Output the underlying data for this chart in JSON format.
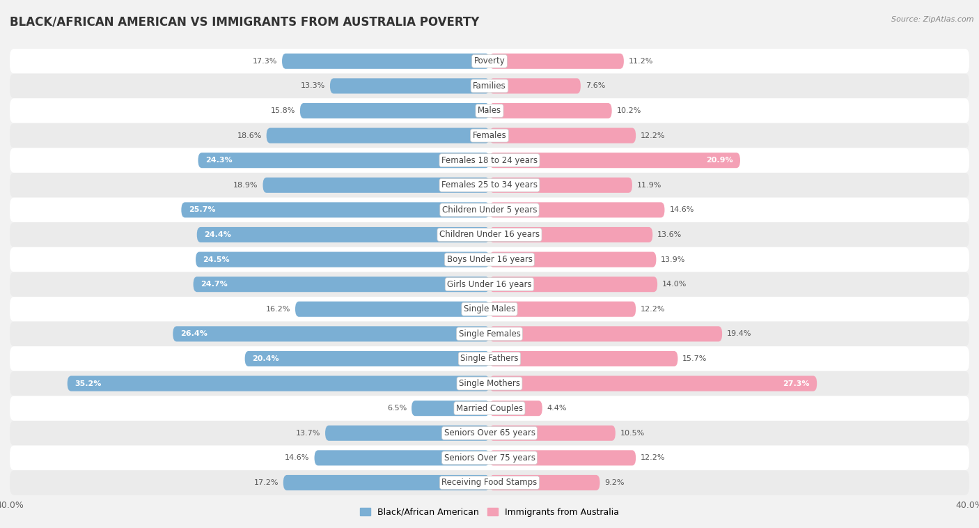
{
  "title": "BLACK/AFRICAN AMERICAN VS IMMIGRANTS FROM AUSTRALIA POVERTY",
  "source": "Source: ZipAtlas.com",
  "categories": [
    "Poverty",
    "Families",
    "Males",
    "Females",
    "Females 18 to 24 years",
    "Females 25 to 34 years",
    "Children Under 5 years",
    "Children Under 16 years",
    "Boys Under 16 years",
    "Girls Under 16 years",
    "Single Males",
    "Single Females",
    "Single Fathers",
    "Single Mothers",
    "Married Couples",
    "Seniors Over 65 years",
    "Seniors Over 75 years",
    "Receiving Food Stamps"
  ],
  "left_values": [
    17.3,
    13.3,
    15.8,
    18.6,
    24.3,
    18.9,
    25.7,
    24.4,
    24.5,
    24.7,
    16.2,
    26.4,
    20.4,
    35.2,
    6.5,
    13.7,
    14.6,
    17.2
  ],
  "right_values": [
    11.2,
    7.6,
    10.2,
    12.2,
    20.9,
    11.9,
    14.6,
    13.6,
    13.9,
    14.0,
    12.2,
    19.4,
    15.7,
    27.3,
    4.4,
    10.5,
    12.2,
    9.2
  ],
  "left_color": "#7bafd4",
  "right_color": "#f4a0b5",
  "left_label": "Black/African American",
  "right_label": "Immigrants from Australia",
  "background_color": "#f2f2f2",
  "row_color_even": "#ffffff",
  "row_color_odd": "#ebebeb",
  "axis_max": 40.0,
  "title_fontsize": 12,
  "label_fontsize": 8.5,
  "value_fontsize": 8,
  "threshold_inside": 20.0
}
